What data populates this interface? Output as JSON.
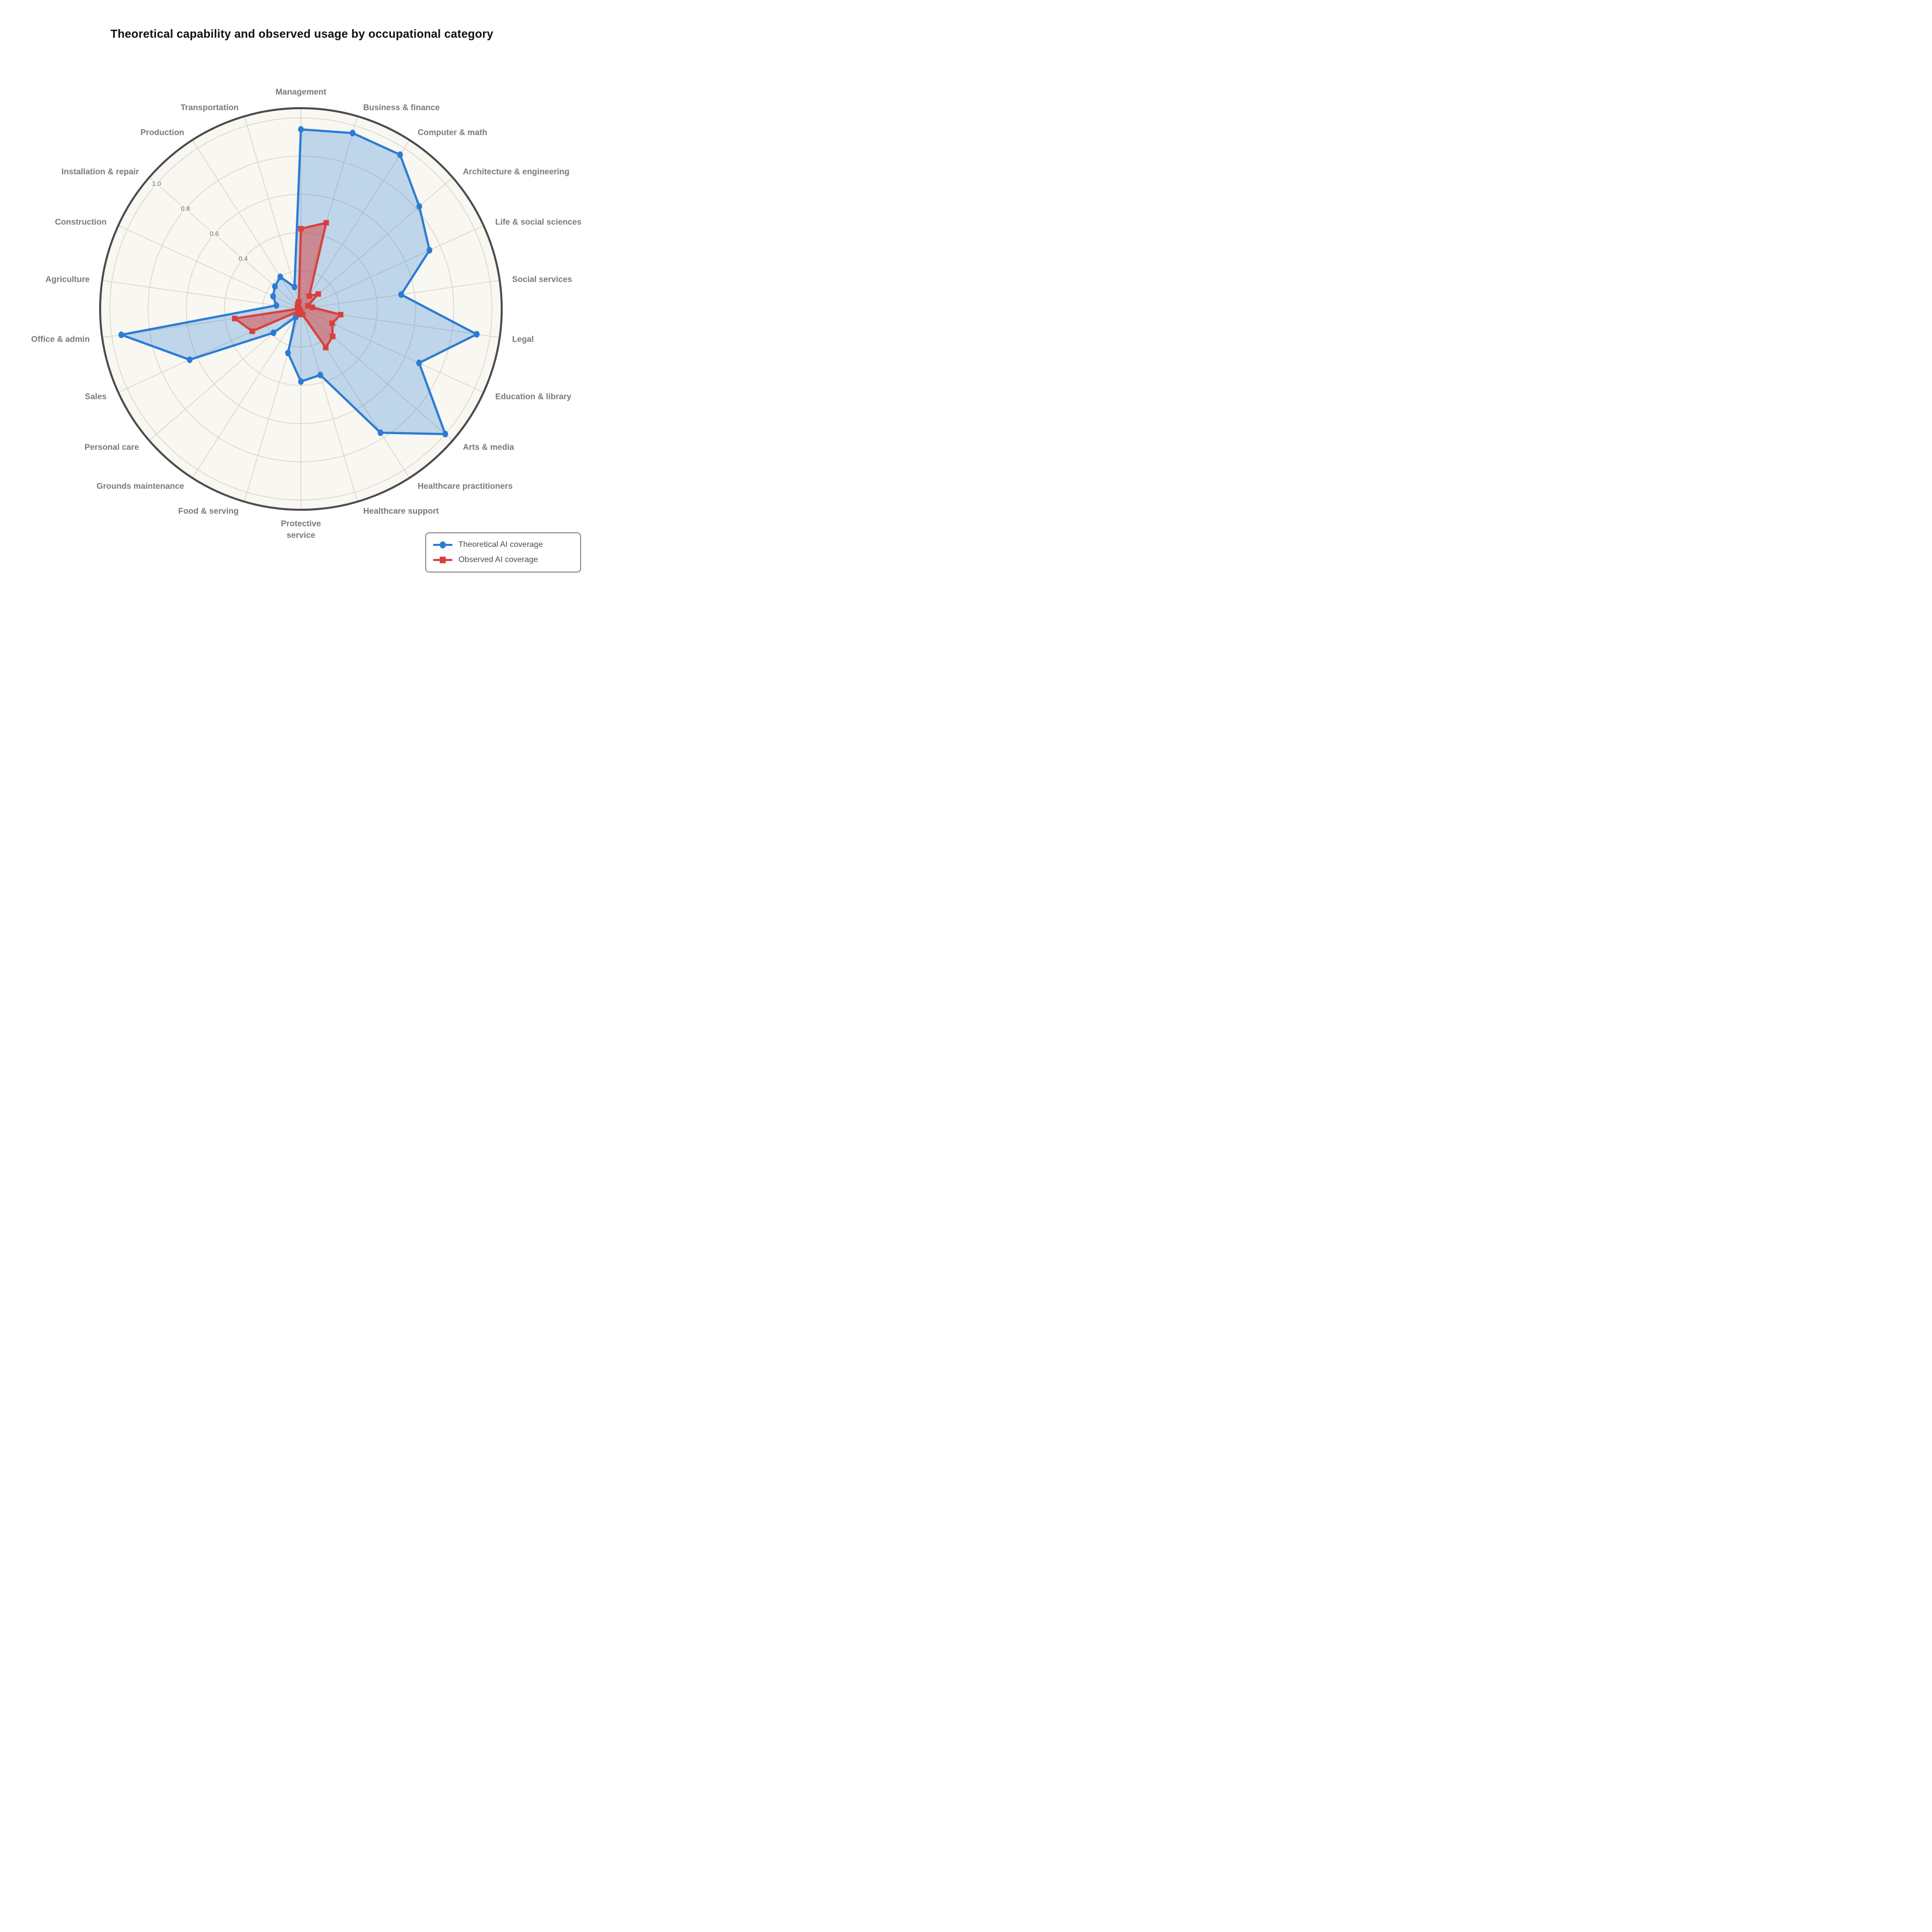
{
  "title": "Theoretical capability and observed usage by occupational category",
  "legend": {
    "items": [
      {
        "label": "Theoretical AI coverage",
        "color": "#2B7CD3",
        "marker": "circle"
      },
      {
        "label": "Observed AI coverage",
        "color": "#D8403D",
        "marker": "square"
      }
    ]
  },
  "chart_data": {
    "type": "radar",
    "title": "Theoretical capability and observed usage by occupational category",
    "categories": [
      "Management",
      "Business & finance",
      "Computer & math",
      "Architecture & engineering",
      "Life & social sciences",
      "Social services",
      "Legal",
      "Education & library",
      "Arts & media",
      "Healthcare practitioners",
      "Healthcare support",
      "Protective service",
      "Food & serving",
      "Grounds maintenance",
      "Personal care",
      "Sales",
      "Office & admin",
      "Agriculture",
      "Construction",
      "Installation & repair",
      "Production",
      "Transportation"
    ],
    "series": [
      {
        "name": "Theoretical AI coverage",
        "marker": "circle",
        "color": "#2B7CD3",
        "fill": "rgba(43,124,211,0.28)",
        "values": [
          0.94,
          0.96,
          0.96,
          0.82,
          0.74,
          0.53,
          0.93,
          0.68,
          1.0,
          0.77,
          0.36,
          0.38,
          0.24,
          0.05,
          0.19,
          0.64,
          0.95,
          0.13,
          0.16,
          0.18,
          0.2,
          0.12
        ]
      },
      {
        "name": "Observed AI coverage",
        "marker": "square",
        "color": "#D8403D",
        "fill": "rgba(216,64,61,0.50)",
        "values": [
          0.42,
          0.47,
          0.08,
          0.12,
          0.04,
          0.06,
          0.21,
          0.18,
          0.22,
          0.24,
          0.03,
          0.02,
          0.03,
          0.01,
          0.02,
          0.28,
          0.35,
          0.01,
          0.02,
          0.02,
          0.03,
          0.04
        ]
      }
    ],
    "radial_ticks": [
      "0.4",
      "0.6",
      "0.8",
      "1.0"
    ],
    "radial_tick_values": [
      0.4,
      0.6,
      0.8,
      1.0
    ],
    "rings": [
      0.2,
      0.4,
      0.6,
      0.8,
      1.0
    ],
    "r_max": 1.051,
    "start_angle_deg": 90,
    "direction": "clockwise",
    "tick_axis_angle_deg": 139.09,
    "grid": true,
    "legend_position": "bottom-right",
    "colors": {
      "plot_background": "#F9F7F1",
      "grid_line": "#D9D5C9",
      "outer_circle": "#4B4B4B",
      "category_label": "#7a7a7a",
      "tick_label": "#696969"
    }
  }
}
